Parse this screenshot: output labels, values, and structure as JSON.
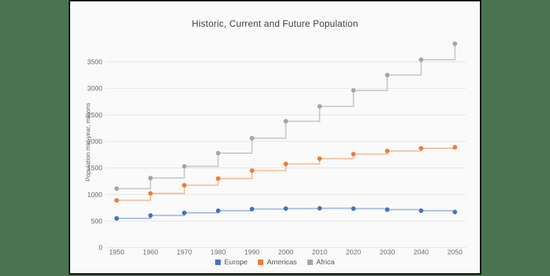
{
  "page": {
    "background_color": "#4a7450",
    "panel_background": "#fafafa",
    "panel_border_color": "#000000"
  },
  "chart_data": {
    "type": "line",
    "subtype": "step-after",
    "title": "Historic, Current and Future Population",
    "xlabel": "",
    "ylabel": "Population mid-year, millions",
    "x": [
      1950,
      1960,
      1970,
      1980,
      1990,
      2000,
      2010,
      2020,
      2030,
      2040,
      2050
    ],
    "series": [
      {
        "name": "Europe",
        "color": "#4472c4",
        "line_opacity": 0.45,
        "values": [
          550,
          605,
          655,
          695,
          725,
          735,
          740,
          735,
          715,
          695,
          670
        ]
      },
      {
        "name": "Americas",
        "color": "#ed7d31",
        "line_opacity": 0.45,
        "values": [
          890,
          1020,
          1175,
          1300,
          1450,
          1575,
          1675,
          1760,
          1820,
          1870,
          1890
        ]
      },
      {
        "name": "Africa",
        "color": "#a5a5a5",
        "line_opacity": 0.55,
        "values": [
          1110,
          1310,
          1530,
          1780,
          2060,
          2380,
          2660,
          2960,
          3250,
          3540,
          3840
        ]
      }
    ],
    "yticks": [
      0,
      500,
      1000,
      1500,
      2000,
      2500,
      3000,
      3500
    ],
    "ylim": [
      0,
      3900
    ],
    "grid": "horizontal-only",
    "grid_color": "#e3e3e3",
    "tick_label_color": "#6e6e6e",
    "title_color": "#444444",
    "legend_position": "bottom",
    "markers": true
  }
}
